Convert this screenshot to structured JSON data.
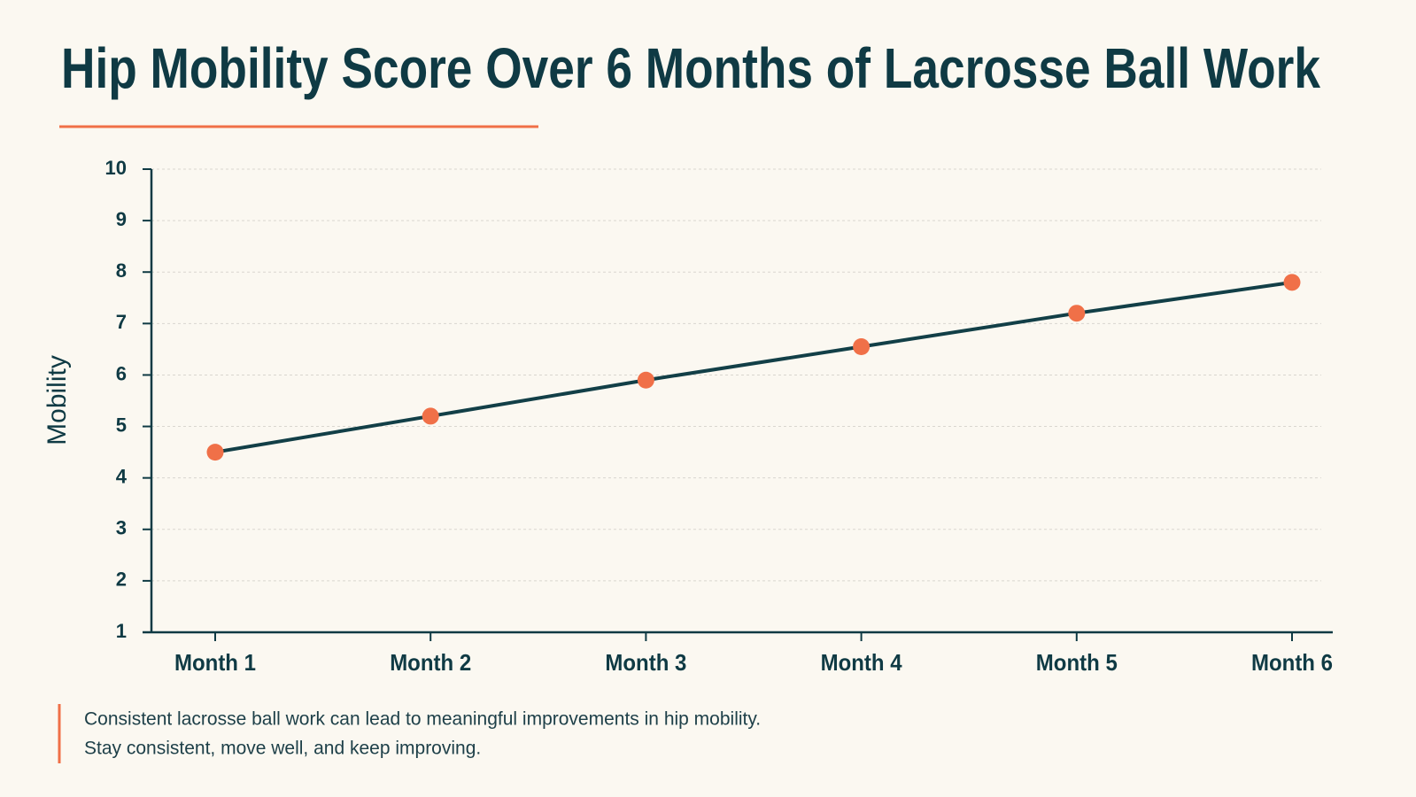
{
  "chart_data": {
    "type": "line",
    "title": "Hip Mobility Score Over 6 Months of Lacrosse Ball Work",
    "y_label": "Mobility",
    "categories": [
      "Month 1",
      "Month 2",
      "Month 3",
      "Month 4",
      "Month 5",
      "Month 6"
    ],
    "values": [
      4.5,
      5.2,
      5.9,
      6.55,
      7.2,
      7.8
    ],
    "color": "#123f47",
    "marker_color": "#f07048",
    "ylim": [
      1,
      10
    ],
    "yticks": [
      1,
      2,
      3,
      4,
      5,
      6,
      7,
      8,
      9,
      10
    ],
    "grid": true,
    "annotation": [
      "Consistent lacrosse ball work can lead to meaningful improvements in hip mobility.",
      "Stay consistent, move well, and keep improving."
    ]
  }
}
